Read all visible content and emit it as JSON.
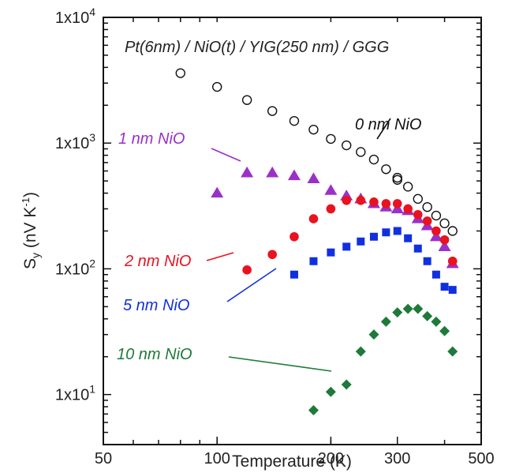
{
  "chart_data": {
    "type": "scatter",
    "title": "Pt(6nm) / NiO(t) / YIG(250 nm) / GGG",
    "xlabel": "Temperature (K)",
    "ylabel": "S",
    "ylabel_sub": "y",
    "ylabel_unit": " (nV K",
    "ylabel_sup": "-1",
    "ylabel_end": ")",
    "xscale": "log",
    "yscale": "log",
    "xlim": [
      50,
      500
    ],
    "ylim": [
      4,
      10000
    ],
    "xticks": [
      {
        "value": 50,
        "label": "50"
      },
      {
        "value": 100,
        "label": "100"
      },
      {
        "value": 200,
        "label": "200"
      },
      {
        "value": 300,
        "label": "300"
      },
      {
        "value": 500,
        "label": "500"
      }
    ],
    "yticks": [
      {
        "value": 10,
        "base": "1x10",
        "exp": "1"
      },
      {
        "value": 100,
        "base": "1x10",
        "exp": "2"
      },
      {
        "value": 1000,
        "base": "1x10",
        "exp": "3"
      },
      {
        "value": 10000,
        "base": "1x10",
        "exp": "4"
      }
    ],
    "series": [
      {
        "name": "0 nm NiO",
        "marker": "open-circle",
        "color": "#111111",
        "x": [
          80,
          100,
          120,
          140,
          160,
          180,
          200,
          220,
          240,
          260,
          280,
          300,
          300,
          320,
          340,
          360,
          380,
          400,
          420
        ],
        "y": [
          3600,
          2800,
          2200,
          1800,
          1500,
          1280,
          1080,
          960,
          850,
          740,
          620,
          530,
          510,
          450,
          360,
          310,
          265,
          230,
          200
        ]
      },
      {
        "name": "1 nm NiO",
        "marker": "triangle",
        "color": "#9b30c8",
        "x": [
          100,
          120,
          140,
          160,
          180,
          200,
          220,
          240,
          260,
          280,
          300,
          320,
          340,
          360,
          380,
          400,
          420
        ],
        "y": [
          400,
          580,
          580,
          550,
          520,
          420,
          380,
          360,
          330,
          310,
          300,
          290,
          250,
          220,
          180,
          150,
          110
        ]
      },
      {
        "name": "2 nm NiO",
        "marker": "circle",
        "color": "#e8131f",
        "x": [
          120,
          140,
          160,
          180,
          200,
          220,
          240,
          260,
          280,
          300,
          320,
          340,
          360,
          380,
          400,
          420
        ],
        "y": [
          98,
          130,
          180,
          250,
          300,
          350,
          350,
          340,
          330,
          330,
          300,
          270,
          240,
          200,
          170,
          115
        ]
      },
      {
        "name": "5 nm NiO",
        "marker": "square",
        "color": "#1030e0",
        "x": [
          160,
          180,
          200,
          220,
          240,
          260,
          280,
          300,
          320,
          340,
          360,
          380,
          400,
          420
        ],
        "y": [
          90,
          115,
          135,
          150,
          165,
          180,
          195,
          200,
          175,
          145,
          115,
          90,
          72,
          68
        ]
      },
      {
        "name": "10 nm NiO",
        "marker": "diamond",
        "color": "#1e7a3a",
        "x": [
          180,
          200,
          220,
          240,
          260,
          280,
          300,
          320,
          340,
          360,
          380,
          400,
          420
        ],
        "y": [
          7.5,
          10.5,
          12,
          22,
          30,
          38,
          45,
          48,
          48,
          42,
          38,
          32,
          22
        ]
      }
    ],
    "annotations": [
      {
        "text": "0 nm NiO",
        "color": "#111111"
      },
      {
        "text": "1 nm NiO",
        "color": "#9b30c8"
      },
      {
        "text": "2 nm NiO",
        "color": "#e8131f"
      },
      {
        "text": "5 nm NiO",
        "color": "#1030e0"
      },
      {
        "text": "10 nm NiO",
        "color": "#1e7a3a"
      }
    ]
  }
}
